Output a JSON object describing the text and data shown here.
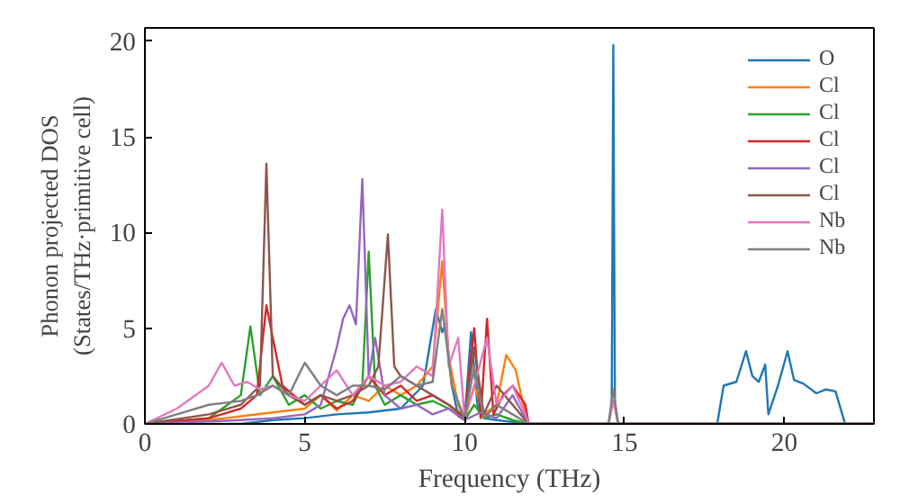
{
  "chart_data": {
    "type": "line",
    "xlabel": "Frequency (THz)",
    "ylabel": "Phonon projected DOS\n(States/THz·primitive cell)",
    "xlim": [
      0,
      22.8
    ],
    "ylim": [
      0,
      20.7
    ],
    "xticks": [
      0,
      5,
      10,
      15,
      20
    ],
    "yticks": [
      0,
      5,
      10,
      15,
      20
    ],
    "legend": "top right",
    "grid": false,
    "series": [
      {
        "name": "O",
        "color": "#1f77b4",
        "x": [
          0,
          3,
          4,
          5,
          6,
          7,
          8,
          8.7,
          9.1,
          9.3,
          9.4,
          9.6,
          9.8,
          10,
          10.2,
          10.4,
          10.6,
          11,
          11.5,
          12,
          14.5,
          14.6,
          14.65,
          14.7,
          14.8,
          17.9,
          18.1,
          18.5,
          18.8,
          19,
          19.2,
          19.4,
          19.5,
          19.8,
          20.1,
          20.3,
          20.6,
          21,
          21.3,
          21.6,
          21.9,
          22.8
        ],
        "values": [
          0,
          0,
          0.2,
          0.3,
          0.5,
          0.6,
          0.8,
          2,
          6,
          4.8,
          5.2,
          2,
          0.4,
          0.2,
          4.8,
          1,
          0.3,
          0.2,
          0.1,
          0,
          0,
          1,
          19.8,
          1,
          0,
          0,
          2,
          2.2,
          3.8,
          2.5,
          2.2,
          3.1,
          0.5,
          2,
          3.8,
          2.3,
          2.1,
          1.6,
          1.8,
          1.7,
          0,
          0
        ]
      },
      {
        "name": "Cl",
        "color": "#ff7f0e",
        "x": [
          0,
          2,
          3,
          4,
          5,
          5.5,
          6,
          6.5,
          7,
          7.5,
          8,
          8.5,
          9,
          9.3,
          9.5,
          9.8,
          10,
          10.3,
          10.6,
          11,
          11.3,
          11.6,
          11.9,
          12,
          22.8
        ],
        "values": [
          0,
          0.2,
          0.4,
          0.6,
          0.8,
          1.5,
          0.7,
          1.5,
          1.2,
          2,
          1.5,
          2,
          3,
          8.5,
          3.5,
          1,
          0.2,
          2,
          0.5,
          1,
          3.6,
          2.8,
          0.5,
          0,
          0
        ]
      },
      {
        "name": "Cl",
        "color": "#2ca02c",
        "x": [
          0,
          2,
          3,
          3.3,
          3.6,
          4,
          4.5,
          5,
          5.5,
          6,
          6.5,
          6.8,
          7,
          7.2,
          7.5,
          8,
          8.5,
          9,
          9.5,
          10,
          10.3,
          10.6,
          11,
          11.5,
          12,
          22.8
        ],
        "values": [
          0,
          0.3,
          1.5,
          5.1,
          1.5,
          2.5,
          1,
          1.5,
          0.8,
          1.2,
          1,
          2,
          9,
          2,
          1,
          1.5,
          1,
          1.2,
          0.8,
          0.2,
          1,
          0.3,
          0.5,
          0.2,
          0,
          0
        ]
      },
      {
        "name": "Cl",
        "color": "#d62728",
        "x": [
          0,
          2,
          3,
          3.5,
          3.8,
          4,
          4.3,
          5,
          5.5,
          6,
          6.5,
          7,
          7.5,
          8,
          8.5,
          9,
          9.5,
          10,
          10.3,
          10.5,
          10.7,
          10.9,
          11.2,
          11.5,
          11.9,
          12,
          22.8
        ],
        "values": [
          0,
          0.3,
          0.8,
          1.5,
          6.2,
          4.5,
          2,
          1,
          1.5,
          0.8,
          1.2,
          2.5,
          1.5,
          2,
          1.2,
          1.5,
          1,
          0.3,
          5,
          0.3,
          5.5,
          0.5,
          1.5,
          2,
          1,
          0,
          0
        ]
      },
      {
        "name": "Cl",
        "color": "#9467bd",
        "x": [
          0,
          3,
          4,
          5,
          5.5,
          6,
          6.2,
          6.4,
          6.6,
          6.8,
          7,
          7.2,
          7.5,
          8,
          8.5,
          9,
          9.5,
          10,
          10.5,
          11,
          11.5,
          12,
          22.8
        ],
        "values": [
          0,
          0.2,
          0.3,
          0.5,
          1,
          4,
          5.5,
          6.2,
          5.2,
          12.8,
          2.5,
          4.5,
          1.5,
          0.8,
          1,
          0.5,
          0.8,
          0.2,
          0.6,
          0.3,
          1.5,
          0,
          0
        ]
      },
      {
        "name": "Cl",
        "color": "#8c564b",
        "x": [
          0,
          2,
          3,
          3.6,
          3.8,
          4,
          4.5,
          5,
          5.5,
          6,
          6.5,
          7,
          7.3,
          7.6,
          7.8,
          8,
          8.5,
          9,
          9.5,
          10,
          10.3,
          10.6,
          11,
          11.5,
          12,
          22.8
        ],
        "values": [
          0,
          0.5,
          1,
          2,
          13.6,
          2.5,
          1.5,
          1,
          1.5,
          1.2,
          1.5,
          2,
          3,
          9.9,
          3,
          2.5,
          2,
          1.5,
          1,
          0.4,
          4,
          0.5,
          2,
          1,
          0,
          0
        ]
      },
      {
        "name": "Nb",
        "color": "#e377c2",
        "x": [
          0,
          1,
          2,
          2.4,
          2.8,
          3.2,
          3.6,
          4,
          4.5,
          5,
          5.5,
          6,
          6.5,
          7,
          7.5,
          8,
          8.5,
          9,
          9.3,
          9.5,
          9.8,
          10,
          10.3,
          10.7,
          11,
          11.5,
          11.9,
          12,
          14.5,
          14.65,
          14.8,
          22.8
        ],
        "values": [
          0,
          0.8,
          2,
          3.2,
          2,
          2.2,
          1.8,
          2,
          1.5,
          1.2,
          2,
          2.8,
          1.5,
          2.5,
          2,
          2.2,
          3,
          2.5,
          11.2,
          3,
          4.5,
          0.3,
          2,
          4.5,
          1,
          2,
          0.5,
          0,
          0,
          1.2,
          0,
          0
        ]
      },
      {
        "name": "Nb",
        "color": "#7f7f7f",
        "x": [
          0,
          1,
          2,
          3,
          3.5,
          4,
          4.5,
          5,
          5.5,
          6,
          6.5,
          7,
          7.5,
          8,
          8.5,
          9,
          9.3,
          9.6,
          10,
          10.3,
          10.6,
          11,
          11.5,
          12,
          14.5,
          14.65,
          14.8,
          22.8
        ],
        "values": [
          0,
          0.5,
          1,
          1.2,
          1.5,
          2,
          1.5,
          3.2,
          2,
          1.5,
          2,
          2,
          1.8,
          2.5,
          2,
          2.2,
          6,
          2,
          0.3,
          3,
          0.3,
          1,
          0.5,
          0,
          0,
          1.8,
          0,
          0
        ]
      }
    ]
  }
}
